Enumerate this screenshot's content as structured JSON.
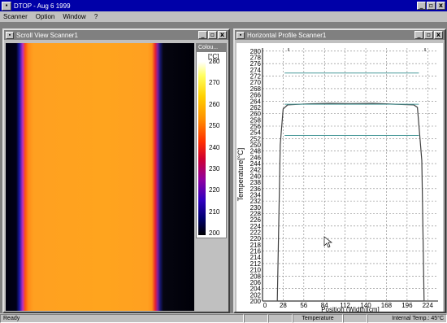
{
  "app": {
    "title": "DTOP - Aug 6 1999",
    "menu": [
      "Scanner",
      "Option",
      "Window",
      "?"
    ]
  },
  "window_buttons": {
    "minimize": "_",
    "restore": "▫",
    "close": "x"
  },
  "scroll_view": {
    "title": "Scroll View Scanner1"
  },
  "colour_legend": {
    "title": "Colou...",
    "unit": "[°C]",
    "ticks": [
      "280",
      "270",
      "260",
      "250",
      "240",
      "230",
      "220",
      "210",
      "200"
    ]
  },
  "profile_window": {
    "title": "Horizontal Profile Scanner1"
  },
  "chart_data": {
    "type": "line",
    "xlabel": "Position (Width)[cm]",
    "ylabel": "Temperature[°C]",
    "xlim": [
      0,
      238
    ],
    "ylim": [
      200,
      281
    ],
    "x_ticks": [
      0,
      28,
      56,
      84,
      112,
      140,
      168,
      196,
      224
    ],
    "y_ticks": [
      200,
      202,
      204,
      206,
      208,
      210,
      212,
      214,
      216,
      218,
      220,
      222,
      224,
      226,
      228,
      230,
      232,
      234,
      236,
      238,
      240,
      242,
      244,
      246,
      248,
      250,
      252,
      254,
      256,
      258,
      260,
      262,
      264,
      266,
      268,
      270,
      272,
      274,
      276,
      278,
      280
    ],
    "grid": true,
    "series": [
      {
        "color": "#404040",
        "points": [
          [
            0,
            200
          ],
          [
            20,
            200
          ],
          [
            24,
            250
          ],
          [
            28,
            261.5
          ],
          [
            34,
            262.8
          ],
          [
            60,
            263.1
          ],
          [
            90,
            263.3
          ],
          [
            120,
            263.2
          ],
          [
            150,
            263.3
          ],
          [
            180,
            263.0
          ],
          [
            205,
            262.8
          ],
          [
            210,
            262
          ],
          [
            216,
            245
          ],
          [
            219,
            200
          ],
          [
            238,
            200
          ]
        ]
      },
      {
        "color": "#4a9a9a",
        "points": [
          [
            30,
            273
          ],
          [
            212,
            273
          ]
        ]
      },
      {
        "color": "#4a9a9a",
        "points": [
          [
            30,
            263
          ],
          [
            212,
            263
          ]
        ]
      },
      {
        "color": "#4a9a9a",
        "points": [
          [
            30,
            253
          ],
          [
            212,
            253
          ]
        ]
      }
    ]
  },
  "status": {
    "ready": "Ready",
    "mode": "Temperature",
    "internal_temp": "Internal Temp.: 45°C"
  }
}
